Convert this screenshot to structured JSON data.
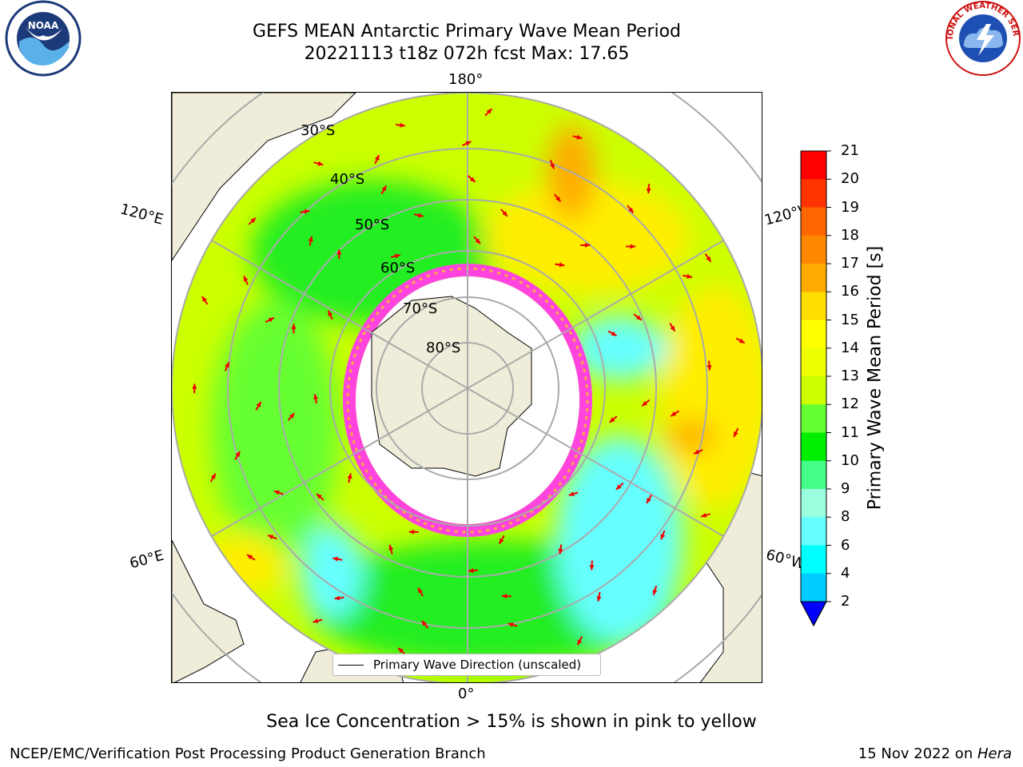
{
  "title": {
    "line1": "GEFS MEAN Antarctic Primary Wave Mean Period",
    "line2": "20221113 t18z 072h fcst   Max: 17.65"
  },
  "map": {
    "longitude_labels": [
      "180°",
      "120°E",
      "120°W",
      "60°E",
      "60°W",
      "0°"
    ],
    "latitude_labels": [
      "30°S",
      "40°S",
      "50°S",
      "60°S",
      "70°S",
      "80°S"
    ],
    "legend_text": "Primary Wave Direction (unscaled)",
    "ice_color": "#ff44dd",
    "land_color": "#efedd9",
    "arrow_color": "#ee0000"
  },
  "colorbar": {
    "label": "Primary Wave Mean Period [s]",
    "ticks": [
      "21",
      "20",
      "19",
      "18",
      "17",
      "16",
      "15",
      "14",
      "13",
      "12",
      "11",
      "10",
      "9",
      "8",
      "6",
      "4",
      "2"
    ],
    "colors": [
      "#ff0000",
      "#ff3300",
      "#ff6600",
      "#ff8800",
      "#ffaa00",
      "#ffdd00",
      "#ffff00",
      "#eeff00",
      "#ccff00",
      "#66ff33",
      "#00ee00",
      "#44ff88",
      "#99ffdd",
      "#66ffff",
      "#00ffff",
      "#00ccff",
      "#0077ff"
    ],
    "extend_color": "#0000ff"
  },
  "footer": {
    "ice_note": "Sea Ice Concentration > 15% is shown in pink to yellow",
    "credit": "NCEP/EMC/Verification Post Processing Product Generation Branch",
    "date_prefix": "15 Nov 2022 on ",
    "machine": "Hera"
  },
  "logos": {
    "noaa_text": "NOAA",
    "nws_text": "NATIONAL WEATHER SERVICE"
  }
}
